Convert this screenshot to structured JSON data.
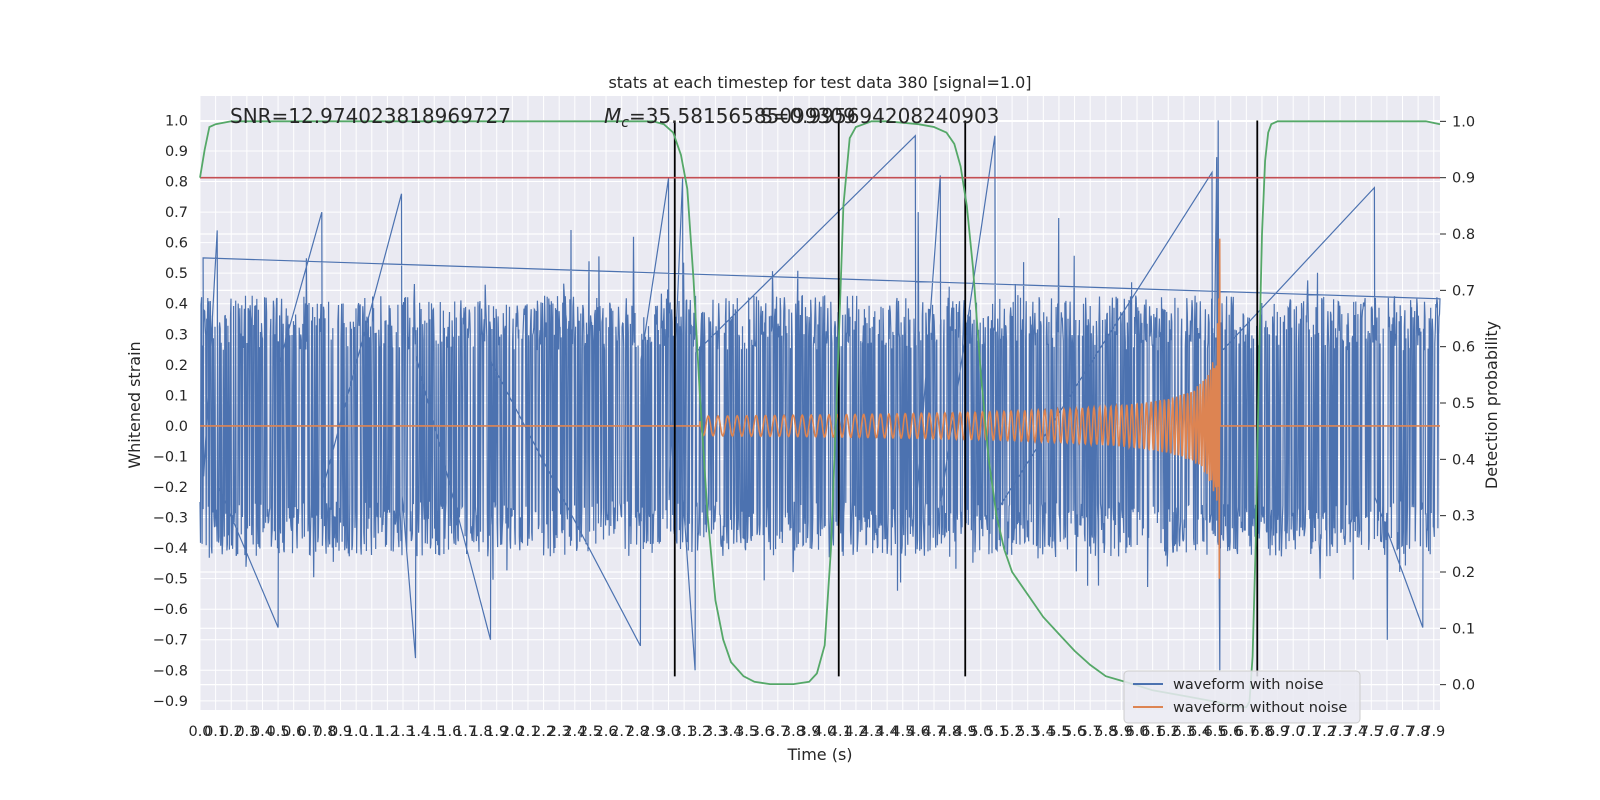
{
  "chart_data": {
    "type": "line",
    "title": "stats at each timestep for test data 380 [signal=1.0]",
    "xlabel": "Time (s)",
    "ylabel": "Whitened strain",
    "ylabel_right": "Detection probability",
    "xlim": [
      0.0,
      7.94
    ],
    "ylim": [
      -0.93,
      1.08
    ],
    "ylim_right": [
      -0.045,
      1.045
    ],
    "x_ticks": [
      "0.0",
      "0.1",
      "0.2",
      "0.3",
      "0.4",
      "0.5",
      "0.6",
      "0.7",
      "0.8",
      "0.9",
      "1.0",
      "1.1",
      "1.2",
      "1.3",
      "1.4",
      "1.5",
      "1.6",
      "1.7",
      "1.8",
      "1.9",
      "2.0",
      "2.1",
      "2.2",
      "2.3",
      "2.4",
      "2.5",
      "2.6",
      "2.7",
      "2.8",
      "2.9",
      "3.0",
      "3.1",
      "3.2",
      "3.3",
      "3.4",
      "3.5",
      "3.6",
      "3.7",
      "3.8",
      "3.9",
      "4.0",
      "4.1",
      "4.2",
      "4.3",
      "4.4",
      "4.5",
      "4.6",
      "4.7",
      "4.8",
      "4.9",
      "5.0",
      "5.1",
      "5.2",
      "5.3",
      "5.4",
      "5.5",
      "5.6",
      "5.7",
      "5.8",
      "5.9",
      "6.0",
      "6.1",
      "6.2",
      "6.3",
      "6.4",
      "6.5",
      "6.6",
      "6.7",
      "6.8",
      "6.9",
      "7.0",
      "7.1",
      "7.2",
      "7.3",
      "7.4",
      "7.5",
      "7.6",
      "7.7",
      "7.8",
      "7.9"
    ],
    "y_ticks": [
      "1.0",
      "0.9",
      "0.8",
      "0.7",
      "0.6",
      "0.5",
      "0.4",
      "0.3",
      "0.2",
      "0.1",
      "0.0",
      "−0.1",
      "−0.2",
      "−0.3",
      "−0.4",
      "−0.5",
      "−0.6",
      "−0.7",
      "−0.8",
      "−0.9"
    ],
    "y_ticks_right": [
      "1.0",
      "0.9",
      "0.8",
      "0.7",
      "0.6",
      "0.5",
      "0.4",
      "0.3",
      "0.2",
      "0.1",
      "0.0"
    ],
    "threshold_right": 0.9,
    "vlines": [
      3.04,
      4.09,
      4.9,
      6.77
    ],
    "vline_range": [
      -0.82,
      1.0
    ],
    "annotations": {
      "snr": "SNR=12.974023818969727",
      "mc": "=35.58156585099309",
      "mc_symbol": "M",
      "mc_sub": "c",
      "overlap": "S=0.995694208240903"
    },
    "series": [
      {
        "name": "waveform with noise",
        "noise_envelope": 0.45,
        "peak_spikes": [
          {
            "x": 0.02,
            "y": 0.55
          },
          {
            "x": 0.11,
            "y": 0.64
          },
          {
            "x": 0.5,
            "y": -0.66
          },
          {
            "x": 0.78,
            "y": 0.7
          },
          {
            "x": 1.29,
            "y": 0.76
          },
          {
            "x": 1.38,
            "y": -0.76
          },
          {
            "x": 1.86,
            "y": -0.7
          },
          {
            "x": 2.82,
            "y": -0.72
          },
          {
            "x": 3.0,
            "y": 0.81
          },
          {
            "x": 3.09,
            "y": 0.81
          },
          {
            "x": 3.17,
            "y": -0.8
          },
          {
            "x": 4.58,
            "y": 0.95
          },
          {
            "x": 4.74,
            "y": 0.82
          },
          {
            "x": 5.09,
            "y": 0.95
          },
          {
            "x": 6.48,
            "y": 0.83
          },
          {
            "x": 6.51,
            "y": 0.88
          },
          {
            "x": 6.52,
            "y": 1.0
          },
          {
            "x": 6.53,
            "y": -0.8
          },
          {
            "x": 7.52,
            "y": 0.78
          },
          {
            "x": 7.83,
            "y": -0.66
          }
        ]
      },
      {
        "name": "waveform without noise",
        "chirp_start": 3.2,
        "merger": 6.53,
        "peak_amplitude": 0.66
      },
      {
        "name": "detection probability",
        "axis": "right",
        "x": [
          0.0,
          0.03,
          0.06,
          0.1,
          0.2,
          2.8,
          2.9,
          2.97,
          3.03,
          3.08,
          3.12,
          3.16,
          3.2,
          3.25,
          3.3,
          3.35,
          3.4,
          3.48,
          3.55,
          3.65,
          3.8,
          3.9,
          3.95,
          4.0,
          4.04,
          4.08,
          4.12,
          4.16,
          4.2,
          4.25,
          4.3,
          4.4,
          4.6,
          4.7,
          4.78,
          4.83,
          4.87,
          4.91,
          4.95,
          5.0,
          5.05,
          5.1,
          5.15,
          5.2,
          5.3,
          5.4,
          5.5,
          5.6,
          5.7,
          5.8,
          5.95,
          6.1,
          6.3,
          6.5,
          6.65,
          6.7,
          6.72,
          6.74,
          6.76,
          6.78,
          6.8,
          6.82,
          6.84,
          6.86,
          6.9,
          7.0,
          7.6,
          7.85,
          7.94
        ],
        "y": [
          0.9,
          0.95,
          0.99,
          0.995,
          1.0,
          1.0,
          1.0,
          0.995,
          0.98,
          0.94,
          0.88,
          0.72,
          0.52,
          0.3,
          0.15,
          0.08,
          0.04,
          0.015,
          0.005,
          0.001,
          0.001,
          0.005,
          0.02,
          0.07,
          0.24,
          0.53,
          0.85,
          0.97,
          0.99,
          0.995,
          1.0,
          1.0,
          0.995,
          0.99,
          0.98,
          0.96,
          0.92,
          0.85,
          0.74,
          0.55,
          0.4,
          0.3,
          0.24,
          0.2,
          0.16,
          0.12,
          0.09,
          0.06,
          0.035,
          0.015,
          0.003,
          -0.01,
          -0.02,
          -0.03,
          -0.04,
          -0.04,
          -0.03,
          0.05,
          0.25,
          0.55,
          0.8,
          0.93,
          0.98,
          0.995,
          1.0,
          1.0,
          1.0,
          1.0,
          0.995
        ]
      }
    ],
    "legend": [
      "waveform with noise",
      "waveform without noise"
    ],
    "legend_position": "lower-right",
    "grid": true
  },
  "colors": {
    "noise": "#4c72b0",
    "clean": "#dd8452",
    "prob": "#55a868",
    "threshold": "#c44e52",
    "vline": "#000000",
    "plot_bg": "#eaeaf2",
    "grid": "#ffffff"
  }
}
